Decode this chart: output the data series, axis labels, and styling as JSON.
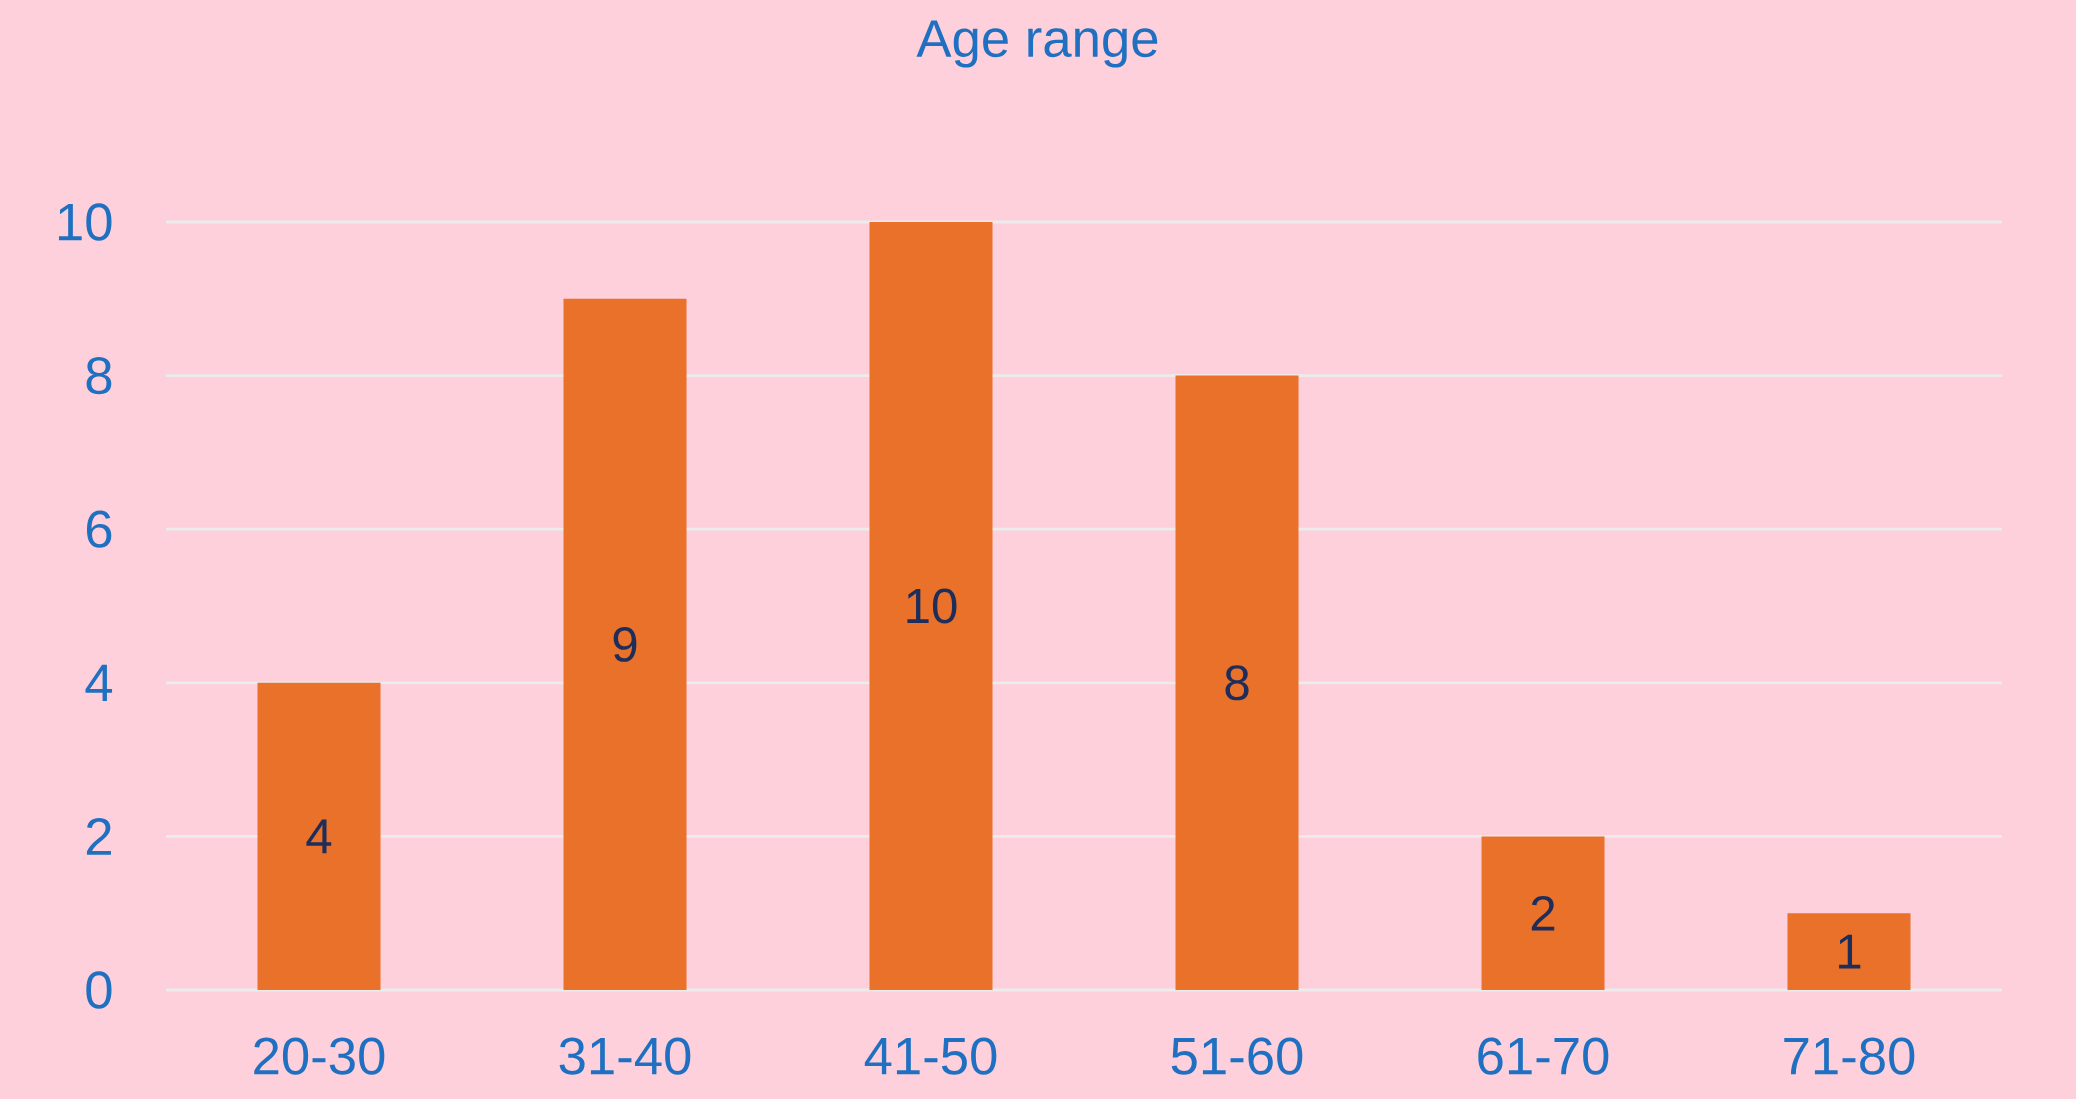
{
  "chart_data": {
    "type": "bar",
    "title": "Age range",
    "categories": [
      "20-30",
      "31-40",
      "41-50",
      "51-60",
      "61-70",
      "71-80"
    ],
    "values": [
      4,
      9,
      10,
      8,
      2,
      1
    ],
    "color": "#e97129",
    "ylim": [
      0,
      10
    ],
    "yticks": [
      0,
      2,
      4,
      6,
      8,
      10
    ],
    "grid": "y",
    "data_labels": true
  }
}
